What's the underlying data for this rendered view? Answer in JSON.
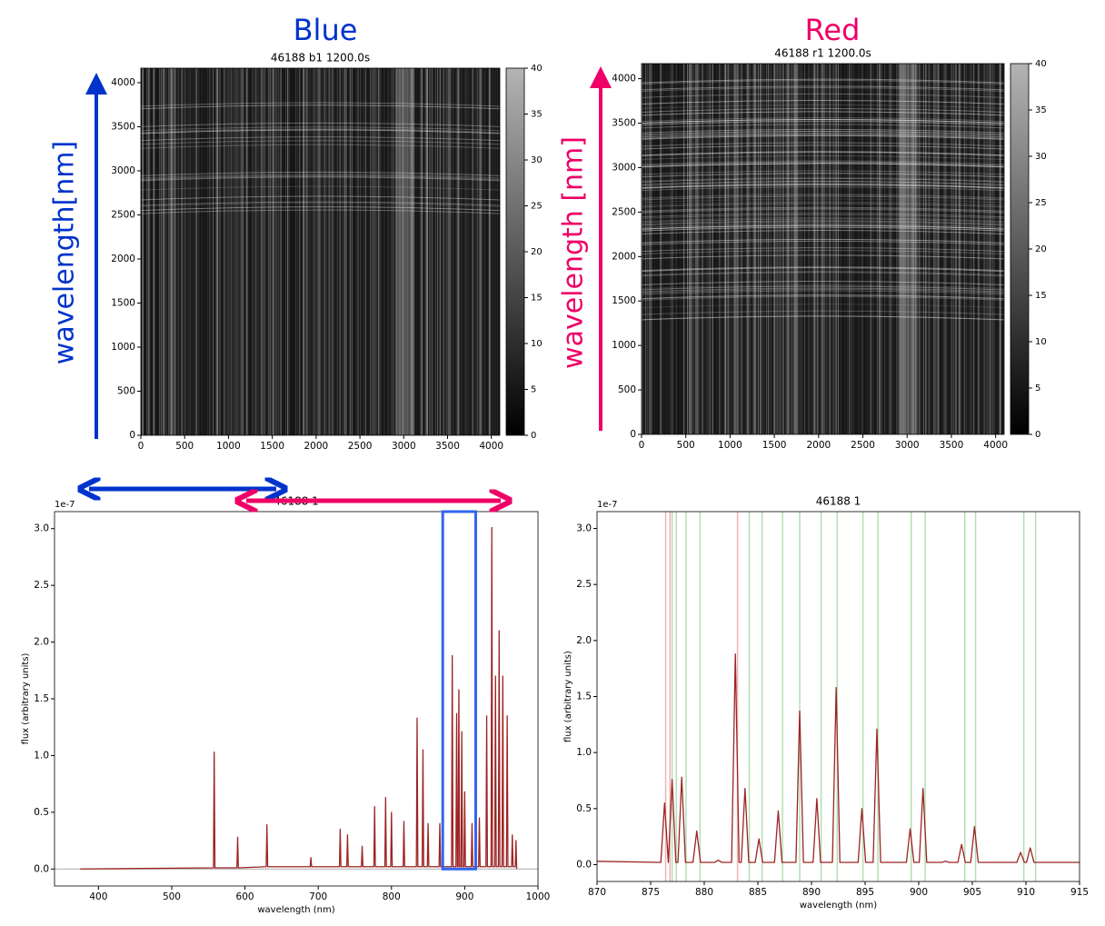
{
  "chart_data": [
    {
      "type": "image",
      "heading": "Blue",
      "ylabel": "wavelength[nm]",
      "color": "#0033cc",
      "title": "46188 b1 1200.0s",
      "xlim": [
        0,
        4096
      ],
      "ylim": [
        0,
        4165
      ],
      "xticks": [
        0,
        500,
        1000,
        1500,
        2000,
        2500,
        3000,
        3500,
        4000
      ],
      "yticks": [
        0,
        500,
        1000,
        1500,
        2000,
        2500,
        3000,
        3500,
        4000
      ],
      "colorbar": {
        "lim": [
          0,
          40
        ],
        "ticks": [
          0,
          5,
          10,
          15,
          20,
          25,
          30,
          35,
          40
        ]
      }
    },
    {
      "type": "image",
      "heading": "Red",
      "ylabel": "wavelength [nm]",
      "color": "#ee0066",
      "title": "46188 r1 1200.0s",
      "xlim": [
        0,
        4096
      ],
      "ylim": [
        0,
        4170
      ],
      "xticks": [
        0,
        500,
        1000,
        1500,
        2000,
        2500,
        3000,
        3500,
        4000
      ],
      "yticks": [
        0,
        500,
        1000,
        1500,
        2000,
        2500,
        3000,
        3500,
        4000
      ],
      "colorbar": {
        "lim": [
          0,
          40
        ],
        "ticks": [
          0,
          5,
          10,
          15,
          20,
          25,
          30,
          35,
          40
        ]
      }
    },
    {
      "type": "line",
      "title": "46188 1",
      "xlabel": "wavelength (nm)",
      "ylabel": "flux (arbitrary units)",
      "offset_label": "1e-7",
      "color": "#9b2423",
      "zero_line": true,
      "xlim": [
        340,
        1000
      ],
      "ylim": [
        -0.15,
        3.15
      ],
      "xticks": [
        400,
        500,
        600,
        700,
        800,
        900,
        1000
      ],
      "yticks": [
        {
          "value": 0,
          "label": "0.0"
        },
        0.5,
        {
          "value": 1,
          "label": "1.0"
        },
        1.5,
        {
          "value": 2,
          "label": "2.0"
        },
        2.5,
        {
          "value": 3,
          "label": "3.0"
        }
      ],
      "x": [
        375,
        557,
        558,
        559,
        589,
        590,
        591,
        629,
        630,
        631,
        689,
        690,
        691,
        729,
        730,
        731,
        739,
        740,
        741,
        759,
        760,
        761,
        776,
        777,
        778,
        791,
        792,
        793,
        799,
        800,
        801,
        816,
        817,
        818,
        834,
        835,
        836,
        842,
        843,
        844,
        849,
        850,
        851,
        865,
        866,
        867,
        882,
        883,
        884,
        888,
        889,
        890,
        891,
        892,
        893,
        895,
        896,
        897,
        899,
        900,
        901,
        909,
        910,
        911,
        919,
        920,
        921,
        929,
        930,
        931,
        936,
        937,
        938,
        941,
        942,
        943,
        946,
        947,
        948,
        951,
        952,
        953,
        957,
        958,
        959,
        964,
        965,
        966,
        969,
        970,
        971
      ],
      "values": [
        0.0,
        0.01,
        1.03,
        0.01,
        0.01,
        0.28,
        0.01,
        0.02,
        0.39,
        0.02,
        0.02,
        0.1,
        0.02,
        0.02,
        0.35,
        0.02,
        0.02,
        0.3,
        0.02,
        0.02,
        0.2,
        0.02,
        0.02,
        0.55,
        0.02,
        0.02,
        0.63,
        0.02,
        0.02,
        0.5,
        0.02,
        0.02,
        0.42,
        0.02,
        0.02,
        1.33,
        0.02,
        0.02,
        1.05,
        0.02,
        0.02,
        0.4,
        0.02,
        0.02,
        0.4,
        0.02,
        0.02,
        1.88,
        0.02,
        0.02,
        1.37,
        0.02,
        0.02,
        1.58,
        0.02,
        0.02,
        1.21,
        0.02,
        0.02,
        0.68,
        0.02,
        0.02,
        0.4,
        0.02,
        0.02,
        0.45,
        0.02,
        0.02,
        1.35,
        0.02,
        0.02,
        3.01,
        0.02,
        0.02,
        1.7,
        0.02,
        0.02,
        2.1,
        0.02,
        0.02,
        1.7,
        0.02,
        0.02,
        1.35,
        0.02,
        0.02,
        0.3,
        0.02,
        0.02,
        0.25,
        0.0
      ]
    },
    {
      "type": "line",
      "title": "46188 1",
      "xlabel": "wavelength (nm)",
      "ylabel": "flux (arbitrary units)",
      "offset_label": "1e-7",
      "color": "#9b2423",
      "xlim": [
        870,
        915
      ],
      "ylim": [
        -0.15,
        3.15
      ],
      "xticks": [
        870,
        875,
        880,
        885,
        890,
        895,
        900,
        905,
        910,
        915
      ],
      "yticks": [
        {
          "value": 0,
          "label": "0.0"
        },
        0.5,
        {
          "value": 1,
          "label": "1.0"
        },
        1.5,
        {
          "value": 2,
          "label": "2.0"
        },
        2.5,
        {
          "value": 3,
          "label": "3.0"
        }
      ],
      "x": [
        870,
        875.95,
        876.3,
        876.65,
        876.65,
        877.0,
        877.35,
        877.55,
        877.9,
        878.25,
        878.95,
        879.3,
        879.65,
        880.95,
        881.3,
        881.65,
        882.55,
        882.9,
        883.25,
        883.45,
        883.8,
        884.15,
        884.75,
        885.1,
        885.45,
        886.55,
        886.9,
        887.25,
        888.55,
        888.9,
        889.25,
        890.15,
        890.5,
        890.85,
        891.95,
        892.3,
        892.65,
        894.35,
        894.7,
        895.05,
        895.75,
        896.1,
        896.45,
        898.85,
        899.2,
        899.55,
        900.05,
        900.4,
        900.75,
        902.15,
        902.5,
        902.85,
        903.65,
        904.0,
        904.35,
        904.85,
        905.2,
        905.55,
        909.15,
        909.5,
        909.85,
        910.05,
        910.4,
        910.75,
        915
      ],
      "values": [
        0.03,
        0.02,
        0.55,
        0.02,
        0.02,
        0.76,
        0.02,
        0.02,
        0.78,
        0.02,
        0.02,
        0.3,
        0.02,
        0.02,
        0.04,
        0.02,
        0.02,
        1.88,
        0.02,
        0.02,
        0.68,
        0.02,
        0.02,
        0.23,
        0.02,
        0.02,
        0.48,
        0.02,
        0.02,
        1.37,
        0.02,
        0.02,
        0.59,
        0.02,
        0.02,
        1.58,
        0.02,
        0.02,
        0.5,
        0.02,
        0.02,
        1.21,
        0.02,
        0.02,
        0.32,
        0.02,
        0.02,
        0.68,
        0.02,
        0.02,
        0.03,
        0.02,
        0.02,
        0.18,
        0.02,
        0.02,
        0.34,
        0.02,
        0.02,
        0.11,
        0.02,
        0.02,
        0.15,
        0.02,
        0.02
      ],
      "vlines": [
        {
          "color": "#2ca02c",
          "x": [
            877.0,
            877.4,
            878.3,
            879.6,
            884.2,
            885.4,
            887.3,
            888.9,
            890.9,
            892.4,
            894.8,
            896.2,
            899.3,
            900.6,
            904.3,
            905.3,
            909.8,
            910.9
          ]
        },
        {
          "color": "#d62728",
          "x": [
            876.4,
            876.8,
            883.1
          ]
        }
      ]
    }
  ]
}
